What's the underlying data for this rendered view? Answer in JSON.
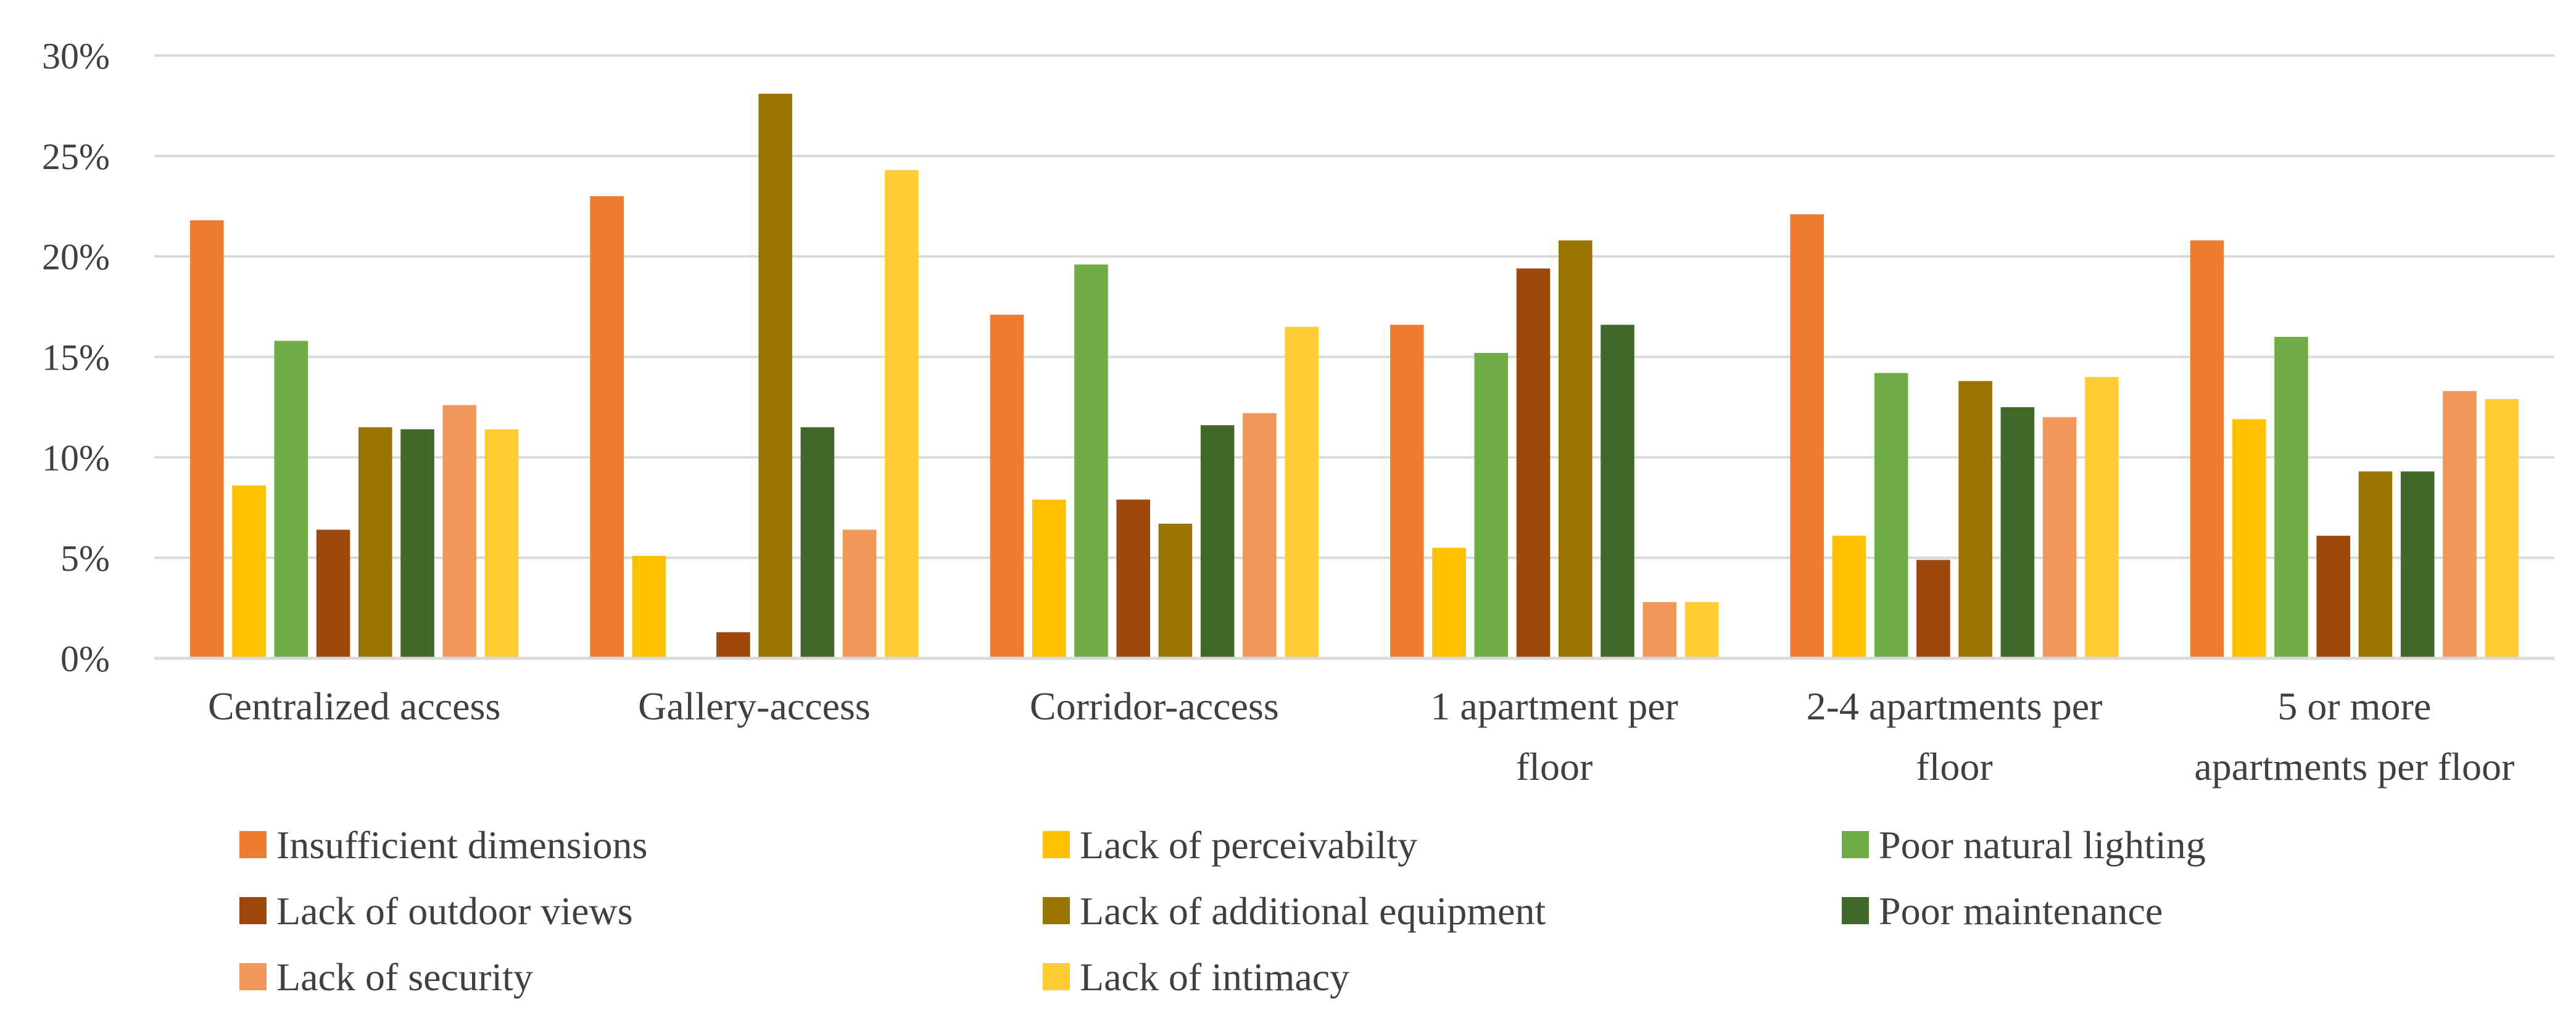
{
  "chart_data": {
    "type": "bar",
    "title": "",
    "xlabel": "",
    "ylabel": "",
    "ylim": [
      0,
      30
    ],
    "yticks": [
      "0%",
      "5%",
      "10%",
      "15%",
      "20%",
      "25%",
      "30%"
    ],
    "grid": true,
    "legend_position": "bottom",
    "categories": [
      [
        "Centralized access"
      ],
      [
        "Gallery-access"
      ],
      [
        "Corridor-access"
      ],
      [
        "1 apartment per",
        "floor"
      ],
      [
        "2-4 apartments per",
        "floor"
      ],
      [
        "5 or more",
        "apartments per floor"
      ]
    ],
    "series": [
      {
        "name": "Insufficient dimensions",
        "color": "#ED7D31",
        "values": [
          21.8,
          23.0,
          17.1,
          16.6,
          22.1,
          20.8
        ]
      },
      {
        "name": "Lack of perceivabilty",
        "color": "#FFC000",
        "values": [
          8.6,
          5.1,
          7.9,
          5.5,
          6.1,
          11.9
        ]
      },
      {
        "name": "Poor natural lighting",
        "color": "#70AD47",
        "values": [
          15.8,
          0,
          19.6,
          15.2,
          14.2,
          16.0
        ]
      },
      {
        "name": "Lack of outdoor views",
        "color": "#9E480E",
        "values": [
          6.4,
          1.3,
          7.9,
          19.4,
          4.9,
          6.1
        ]
      },
      {
        "name": "Lack of additional equipment",
        "color": "#997300",
        "values": [
          11.5,
          28.1,
          6.7,
          20.8,
          13.8,
          9.3
        ]
      },
      {
        "name": "Poor maintenance",
        "color": "#43682B",
        "values": [
          11.4,
          11.5,
          11.6,
          16.6,
          12.5,
          9.3
        ]
      },
      {
        "name": "Lack of security",
        "color": "#F1975A",
        "values": [
          12.6,
          6.4,
          12.2,
          2.8,
          12.0,
          13.3
        ]
      },
      {
        "name": "Lack of intimacy",
        "color": "#FFCD33",
        "values": [
          11.4,
          24.3,
          16.5,
          2.8,
          14.0,
          12.9
        ]
      }
    ]
  }
}
